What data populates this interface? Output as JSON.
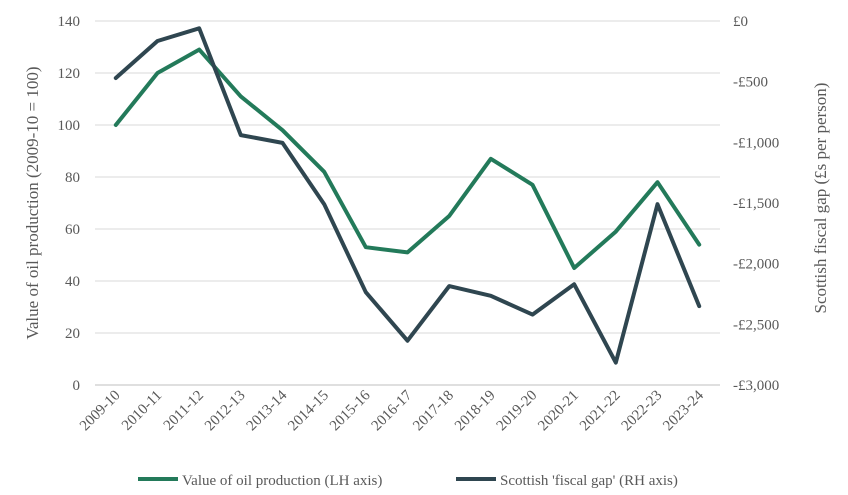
{
  "chart_data": {
    "type": "line",
    "title": "",
    "categories": [
      "2009-10",
      "2010-11",
      "2011-12",
      "2012-13",
      "2013-14",
      "2014-15",
      "2015-16",
      "2016-17",
      "2017-18",
      "2018-19",
      "2019-20",
      "2020-21",
      "2021-22",
      "2022-23",
      "2023-24"
    ],
    "series": [
      {
        "name": "Value of oil production (LH axis)",
        "axis": "left",
        "color": "#237a5a",
        "values": [
          100,
          120,
          129,
          111,
          98,
          82,
          53,
          51,
          65,
          87,
          77,
          45,
          59,
          78,
          54
        ]
      },
      {
        "name": "Scottish 'fiscal gap' (RH axis)",
        "axis": "right",
        "color": "#2f4650",
        "values": [
          -470,
          -165,
          -60,
          -940,
          -1005,
          -1510,
          -2235,
          -2635,
          -2185,
          -2265,
          -2420,
          -2170,
          -2815,
          -1510,
          -2350
        ]
      }
    ],
    "ylabel": "Value of oil production (2009-10 = 100)",
    "y2label": "Scottish fiscal gap (£s per person)",
    "ylim": [
      0,
      140
    ],
    "y2lim": [
      -3000,
      0
    ],
    "yticks": [
      "0",
      "20",
      "40",
      "60",
      "80",
      "100",
      "120",
      "140"
    ],
    "y2ticks": [
      "-£3,000",
      "-£2,500",
      "-£2,000",
      "-£1,500",
      "-£1,000",
      "-£500",
      "£0"
    ],
    "grid": true,
    "legend_position": "bottom"
  }
}
